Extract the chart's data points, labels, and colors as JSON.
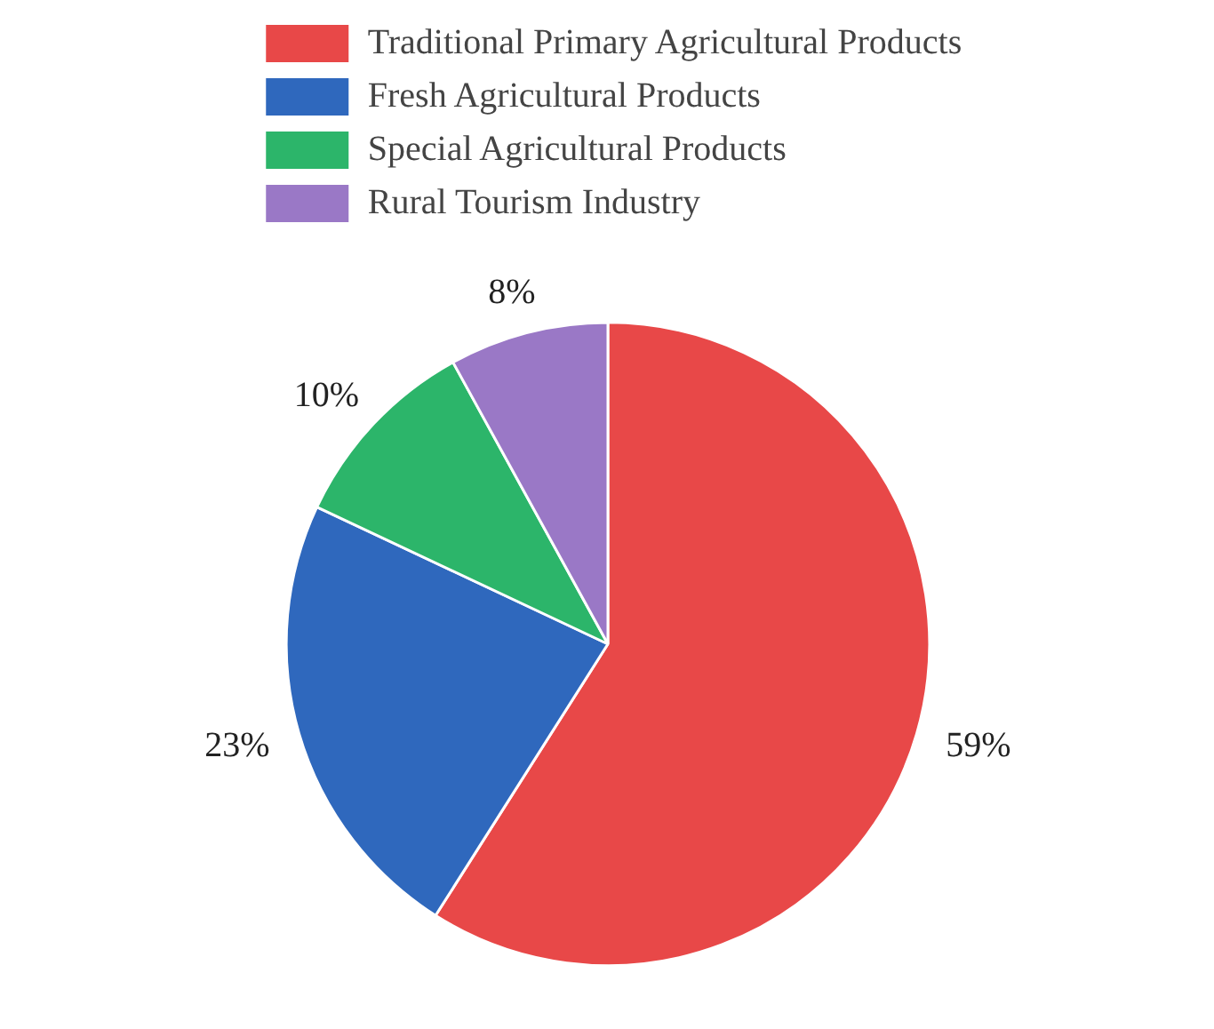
{
  "chart_data": {
    "type": "pie",
    "categories": [
      "Traditional Primary Agricultural Products",
      "Fresh Agricultural Products",
      "Special Agricultural Products",
      "Rural Tourism Industry"
    ],
    "values": [
      59,
      23,
      10,
      8
    ],
    "colors": [
      "#e84848",
      "#2f68bd",
      "#2cb56a",
      "#9a78c6"
    ],
    "value_labels": [
      "59%",
      "23%",
      "10%",
      "8%"
    ],
    "legend": "top"
  }
}
